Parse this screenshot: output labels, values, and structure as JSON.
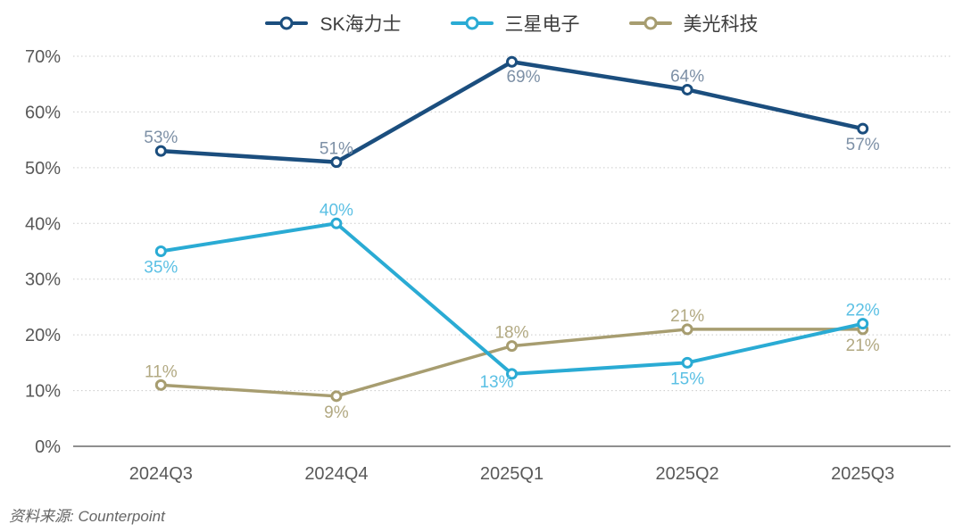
{
  "chart_data": {
    "type": "line",
    "categories": [
      "2024Q3",
      "2024Q4",
      "2025Q1",
      "2025Q2",
      "2025Q3"
    ],
    "series": [
      {
        "name": "SK海力士",
        "color": "#1b4e7e",
        "label_color": "#7d90a6",
        "values": [
          53,
          51,
          69,
          64,
          57
        ],
        "value_labels": [
          "53%",
          "51%",
          "69%",
          "64%",
          "57%"
        ],
        "label_positions": [
          "above",
          "above",
          "below-right",
          "above",
          "below"
        ]
      },
      {
        "name": "三星电子",
        "color": "#2aabd4",
        "label_color": "#5bc0e4",
        "values": [
          35,
          40,
          13,
          15,
          22
        ],
        "value_labels": [
          "35%",
          "40%",
          "13%",
          "15%",
          "22%"
        ],
        "label_positions": [
          "below",
          "above",
          "below-left",
          "below",
          "above"
        ]
      },
      {
        "name": "美光科技",
        "color": "#a79d70",
        "label_color": "#b2a982",
        "values": [
          11,
          9,
          18,
          21,
          21
        ],
        "value_labels": [
          "11%",
          "9%",
          "18%",
          "21%",
          "21%"
        ],
        "label_positions": [
          "above",
          "below",
          "above",
          "above",
          "below"
        ]
      }
    ],
    "ylim": [
      0,
      70
    ],
    "ytick_step": 10,
    "yticks": [
      "0%",
      "10%",
      "20%",
      "30%",
      "40%",
      "50%",
      "60%",
      "70%"
    ],
    "xlabel": "",
    "ylabel": "",
    "title": "",
    "grid": "horizontal-dotted",
    "legend_position": "top",
    "value_suffix": "%",
    "axis_text_color": "#595959",
    "gridline_color": "#c9c9c9",
    "baseline_color": "#8f8f8f"
  },
  "source_note": "资料来源: Counterpoint"
}
